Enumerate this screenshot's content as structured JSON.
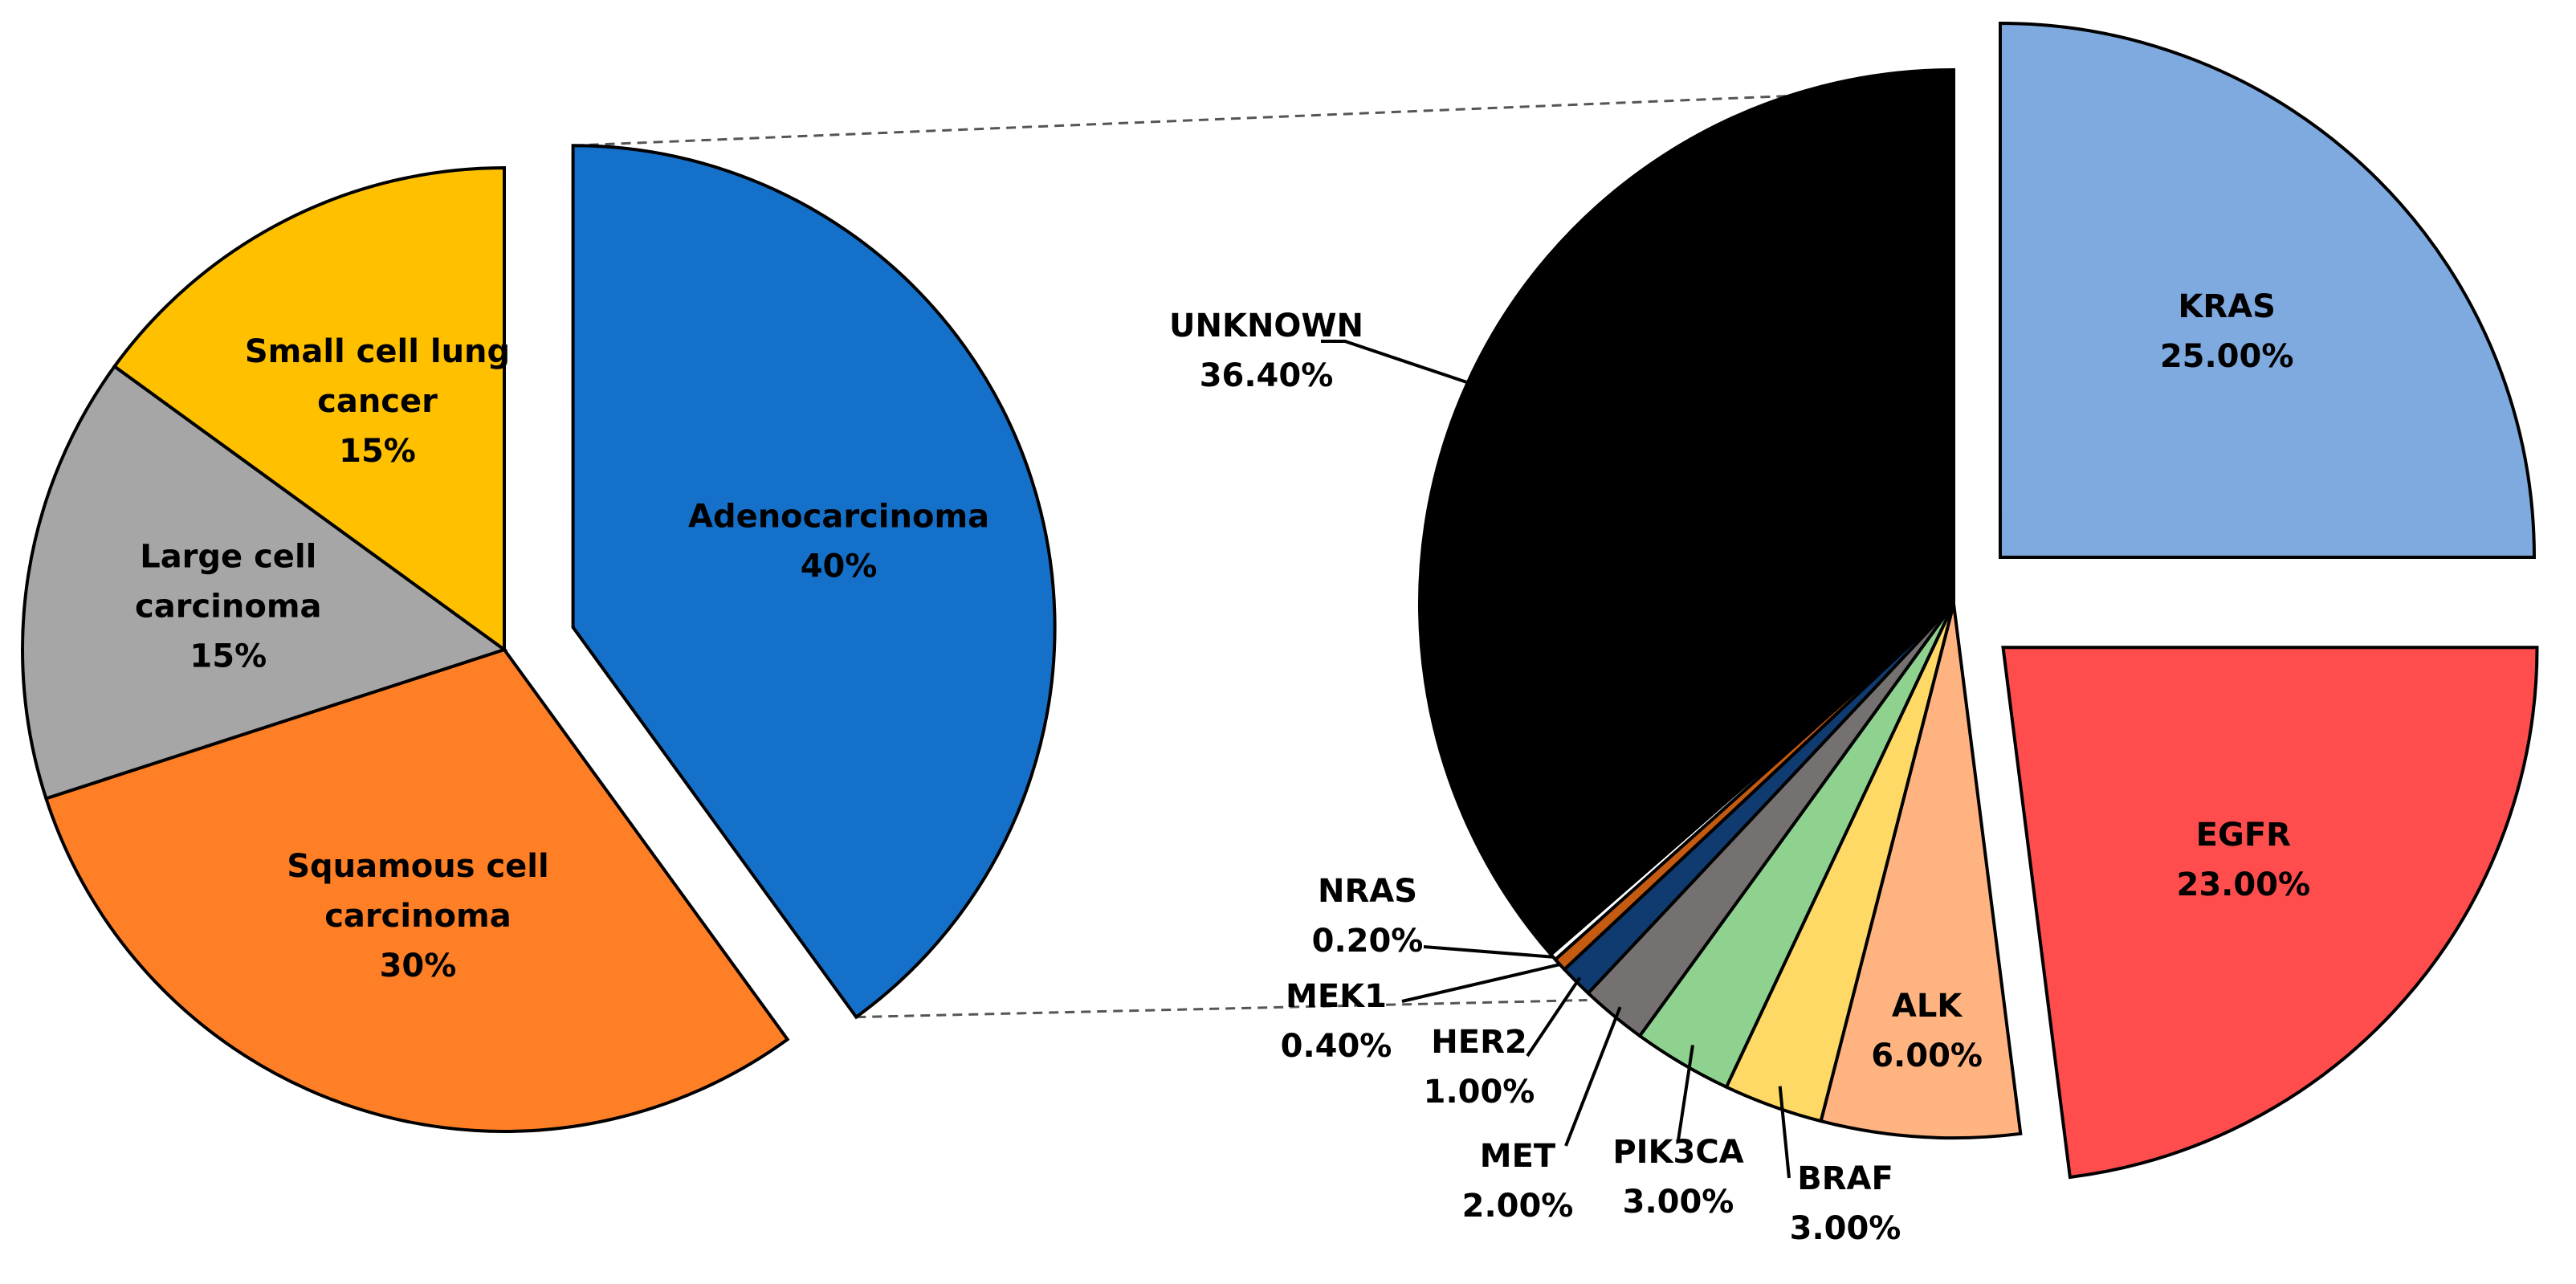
{
  "chart_data": [
    {
      "type": "pie",
      "title": "",
      "slices": [
        {
          "label": "Adenocarcinoma",
          "value": 40,
          "value_label": "40%",
          "color": "#1570C9",
          "exploded": true
        },
        {
          "label": "Squamous cell carcinoma",
          "value": 30,
          "value_label": "30%",
          "color": "#FF7F27"
        },
        {
          "label": "Large cell carcinoma",
          "value": 15,
          "value_label": "15%",
          "color": "#A6A6A6"
        },
        {
          "label": "Small cell lung cancer",
          "value": 15,
          "value_label": "15%",
          "color": "#FFC000"
        }
      ]
    },
    {
      "type": "pie",
      "title": "",
      "breakdown_of": "Adenocarcinoma",
      "slices": [
        {
          "label": "KRAS",
          "value": 25.0,
          "value_label": "25.00%",
          "color": "#7FAADF",
          "exploded": true
        },
        {
          "label": "EGFR",
          "value": 23.0,
          "value_label": "23.00%",
          "color": "#FF4D4D",
          "exploded": true
        },
        {
          "label": "ALK",
          "value": 6.0,
          "value_label": "6.00%",
          "color": "#FFB380"
        },
        {
          "label": "BRAF",
          "value": 3.0,
          "value_label": "3.00%",
          "color": "#FFD966"
        },
        {
          "label": "PIK3CA",
          "value": 3.0,
          "value_label": "3.00%",
          "color": "#8FD18F"
        },
        {
          "label": "MET",
          "value": 2.0,
          "value_label": "2.00%",
          "color": "#767171"
        },
        {
          "label": "HER2",
          "value": 1.0,
          "value_label": "1.00%",
          "color": "#0F3B70"
        },
        {
          "label": "MEK1",
          "value": 0.4,
          "value_label": "0.40%",
          "color": "#C55A11"
        },
        {
          "label": "NRAS",
          "value": 0.2,
          "value_label": "0.20%",
          "color": "#FFFFFF"
        },
        {
          "label": "UNKNOWN",
          "value": 36.4,
          "value_label": "36.40%",
          "color": "#000000"
        }
      ]
    }
  ]
}
